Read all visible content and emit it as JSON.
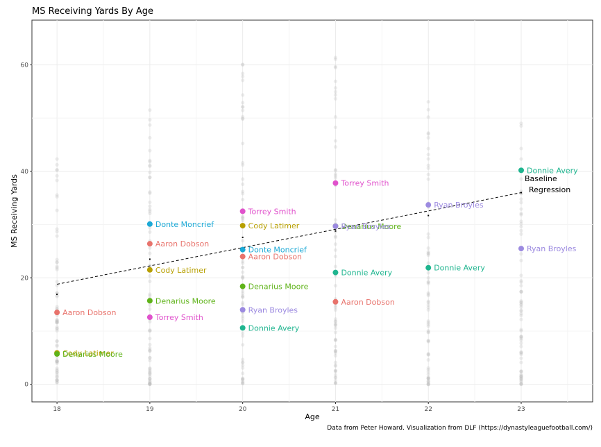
{
  "chart_data": {
    "type": "scatter",
    "title": "MS Receiving Yards By Age",
    "xlabel": "Age",
    "ylabel": "MS Receiving Yards",
    "caption": "Data from Peter Howard. Visualization from DLF (https://dynastyleaguefootball.com/)",
    "xlim": [
      17.73,
      23.77
    ],
    "ylim": [
      -3.3,
      68.4
    ],
    "x_ticks": [
      18,
      19,
      20,
      21,
      22,
      23
    ],
    "y_ticks": [
      0,
      20,
      40,
      60
    ],
    "grid": true,
    "baseline_regression": {
      "label_line1": "Baseline",
      "label_line2": "Regression",
      "x": [
        18,
        23
      ],
      "y": [
        18.8,
        36.0
      ],
      "style": "dashed"
    },
    "background_points": {
      "color": "#bdbdbd",
      "max_y": [
        43.3,
        52.3,
        61.0,
        65.0,
        53.5,
        53.3
      ]
    },
    "age_means": {
      "x": [
        18,
        19,
        20,
        21,
        22,
        23
      ],
      "y": [
        16.9,
        23.5,
        27.6,
        28.8,
        31.7,
        36.0
      ]
    },
    "series": [
      {
        "name": "Aaron Dobson",
        "color": "#e8736c",
        "x": [
          18,
          19,
          20,
          21
        ],
        "y": [
          13.5,
          26.4,
          24.0,
          15.5
        ]
      },
      {
        "name": "Cody Latimer",
        "color": "#b79f00",
        "x": [
          18,
          19,
          20
        ],
        "y": [
          5.9,
          21.5,
          29.8
        ]
      },
      {
        "name": "Denarius Moore",
        "color": "#5fb319",
        "x": [
          18,
          19,
          20,
          21
        ],
        "y": [
          5.7,
          15.7,
          18.4,
          29.7
        ]
      },
      {
        "name": "Donnie Avery",
        "color": "#1fb58f",
        "x": [
          20,
          21,
          22,
          23
        ],
        "y": [
          10.6,
          21.0,
          21.9,
          40.2
        ]
      },
      {
        "name": "Donte Moncrief",
        "color": "#1ca9d6",
        "x": [
          19,
          20
        ],
        "y": [
          30.1,
          25.3
        ]
      },
      {
        "name": "Ryan Broyles",
        "color": "#9c8ae0",
        "x": [
          20,
          21,
          22,
          23
        ],
        "y": [
          14.0,
          29.7,
          33.7,
          25.5
        ]
      },
      {
        "name": "Torrey Smith",
        "color": "#e052cc",
        "x": [
          19,
          20,
          21
        ],
        "y": [
          12.6,
          32.5,
          37.8
        ]
      }
    ]
  }
}
